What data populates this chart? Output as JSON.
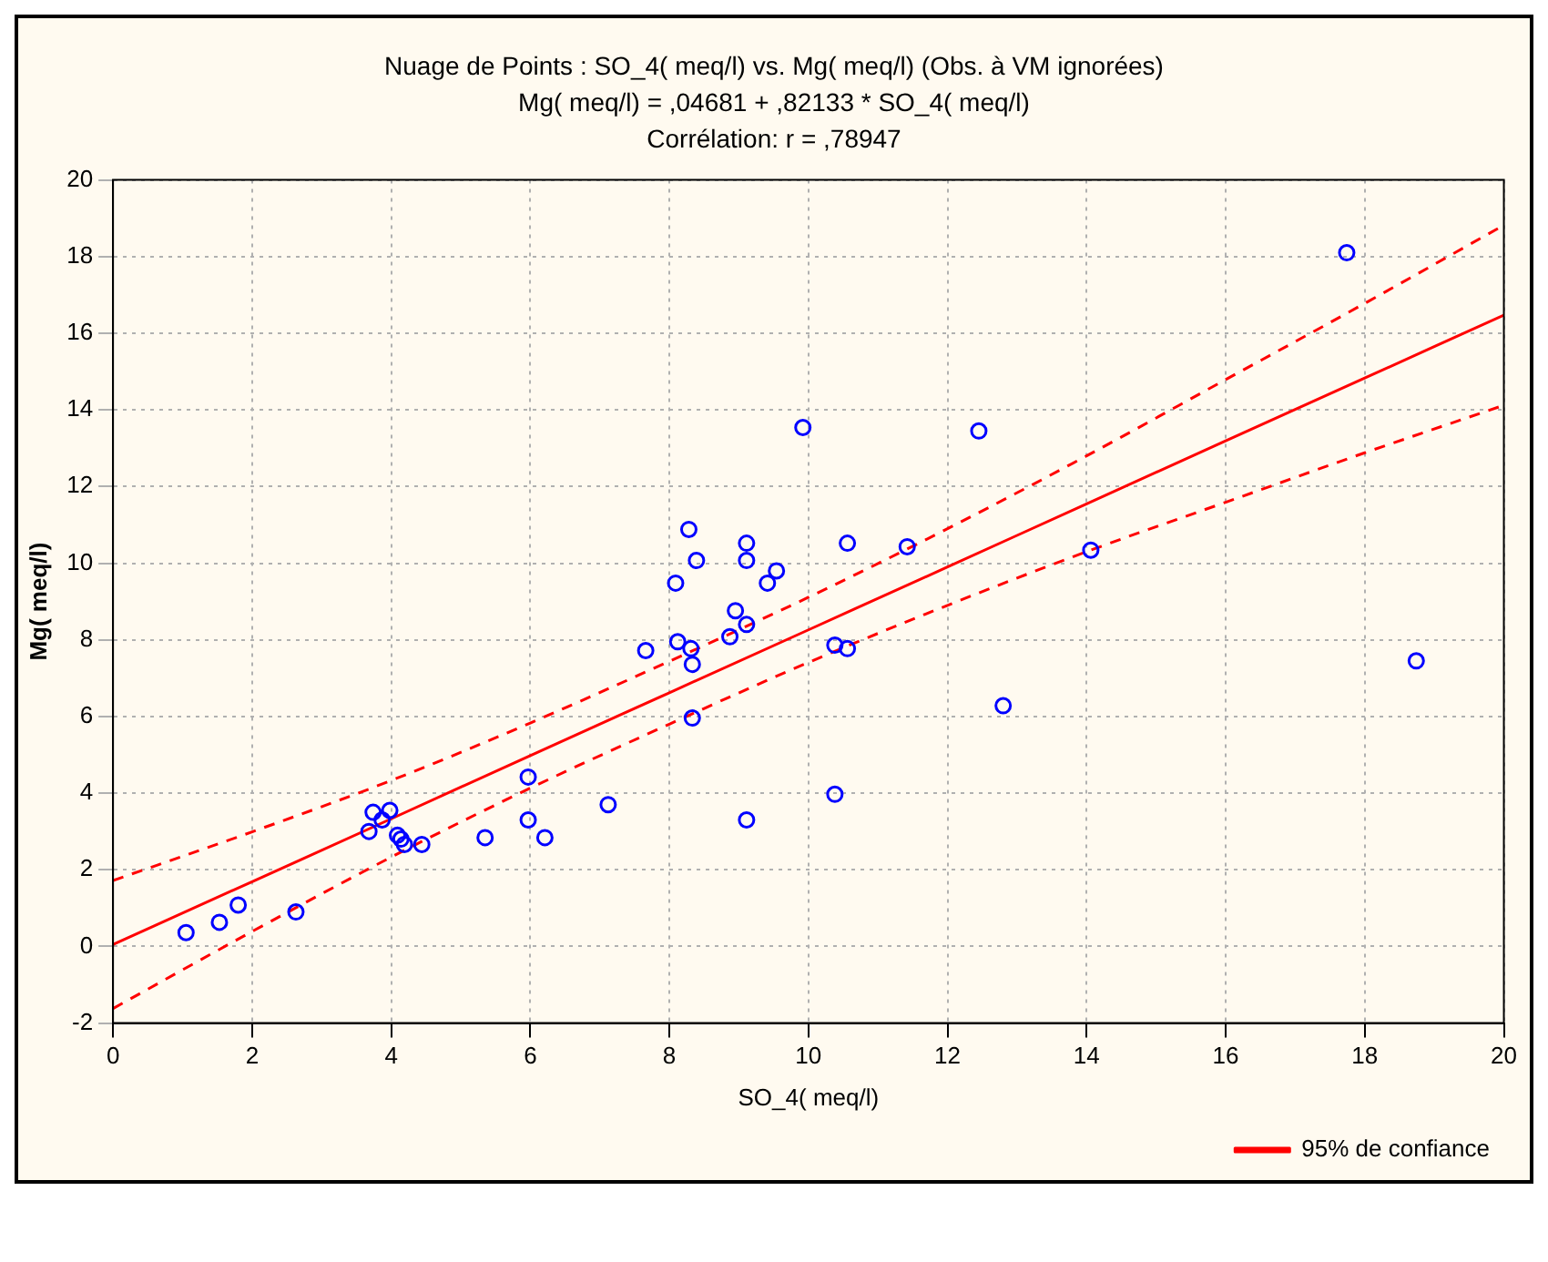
{
  "chart_data": {
    "type": "scatter",
    "title": "Nuage de Points : SO_4( meq/l) vs. Mg( meq/l) (Obs. à VM ignorées)",
    "subtitle": "Mg( meq/l) = ,04681 + ,82133 * SO_4( meq/l)",
    "annotations": [
      "Corrélation: r = ,78947"
    ],
    "xlabel": "SO_4( meq/l)",
    "ylabel": "Mg( meq/l)",
    "xlim": [
      0,
      20
    ],
    "xticks": [
      0,
      2,
      4,
      6,
      8,
      10,
      12,
      14,
      16,
      18,
      20
    ],
    "ylim": [
      -2,
      20
    ],
    "yticks": [
      -2,
      0,
      2,
      4,
      6,
      8,
      10,
      12,
      14,
      16,
      18,
      20
    ],
    "grid": true,
    "legend": "bottom right",
    "marker": "circle",
    "series": [
      {
        "color": "#0000ff",
        "x": [
          1.05,
          1.53,
          1.8,
          2.63,
          3.68,
          3.74,
          3.98,
          3.87,
          4.09,
          4.14,
          4.19,
          4.44,
          5.35,
          5.97,
          5.97,
          6.21,
          7.12,
          7.66,
          8.09,
          8.12,
          8.28,
          8.31,
          8.33,
          8.33,
          8.39,
          8.87,
          8.95,
          9.11,
          9.11,
          9.11,
          9.11,
          9.41,
          9.54,
          9.92,
          10.38,
          10.38,
          10.56,
          10.56,
          11.42,
          12.45,
          12.8,
          14.06,
          17.74,
          18.74
        ],
        "values": [
          0.36,
          0.63,
          1.08,
          0.9,
          3.0,
          3.5,
          3.55,
          3.3,
          2.9,
          2.8,
          2.66,
          2.66,
          2.84,
          4.42,
          3.3,
          2.84,
          3.7,
          7.72,
          9.48,
          7.95,
          10.88,
          7.77,
          7.36,
          5.96,
          10.07,
          8.08,
          8.76,
          10.52,
          10.07,
          3.3,
          8.4,
          9.48,
          9.8,
          13.54,
          7.86,
          3.97,
          10.52,
          7.77,
          10.43,
          13.45,
          6.28,
          10.34,
          18.1,
          7.45
        ]
      },
      {
        "type": "line",
        "name": "95% de confiance",
        "color": "#ff0000",
        "line_style": "solid",
        "marker": "none",
        "x": [
          0,
          2,
          4,
          6,
          8,
          10,
          12,
          14,
          16,
          18,
          20
        ],
        "values": [
          0.05,
          1.69,
          3.33,
          4.98,
          6.62,
          8.26,
          9.9,
          11.55,
          13.19,
          14.83,
          16.47
        ]
      },
      {
        "type": "line",
        "color": "#ff0000",
        "line_style": "dashed",
        "marker": "none",
        "x": [
          0,
          2,
          4,
          6,
          8,
          10,
          12,
          14,
          16,
          18,
          20
        ],
        "values": [
          1.72,
          2.99,
          4.33,
          5.83,
          7.44,
          9.11,
          10.9,
          12.8,
          14.79,
          16.78,
          18.82
        ]
      },
      {
        "type": "line",
        "color": "#ff0000",
        "line_style": "dashed",
        "marker": "none",
        "x": [
          0,
          2,
          4,
          6,
          8,
          10,
          12,
          14,
          16,
          18,
          20
        ],
        "values": [
          -1.62,
          0.39,
          2.33,
          4.13,
          5.8,
          7.41,
          8.9,
          10.3,
          11.59,
          12.88,
          14.12
        ]
      }
    ]
  }
}
